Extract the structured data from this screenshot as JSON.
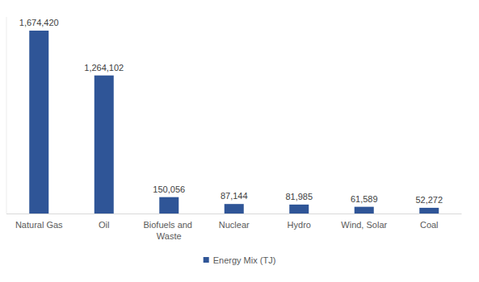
{
  "chart_data": {
    "type": "bar",
    "categories": [
      "Natural Gas",
      "Oil",
      "Biofuels and Waste",
      "Nuclear",
      "Hydro",
      "Wind, Solar",
      "Coal"
    ],
    "series": [
      {
        "name": "Energy Mix (TJ)",
        "color": "#2f5597",
        "values": [
          1674420,
          1264102,
          150056,
          87144,
          81985,
          61589,
          52272
        ],
        "value_labels": [
          "1,674,420",
          "1,264,102",
          "150,056",
          "87,144",
          "81,985",
          "61,589",
          "52,272"
        ]
      }
    ],
    "ylim": [
      0,
      1800000
    ],
    "grid": false,
    "legend": "bottom",
    "data_labels": true,
    "tick_labels": "x"
  }
}
